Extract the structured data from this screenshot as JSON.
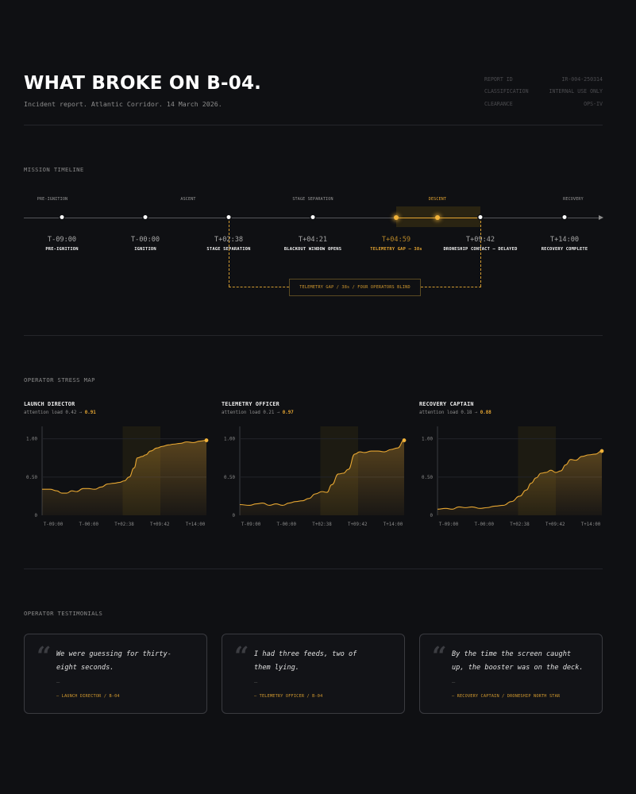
{
  "header": {
    "title": "WHAT BROKE ON B-04.",
    "subtitle": "Incident report. Atlantic Corridor. 14 March 2026.",
    "meta": [
      {
        "key": "REPORT ID",
        "value": "IR-004-250314"
      },
      {
        "key": "CLASSIFICATION",
        "value": "INTERNAL USE ONLY"
      },
      {
        "key": "CLEARANCE",
        "value": "OPS-IV"
      }
    ]
  },
  "timeline": {
    "heading": "MISSION TIMELINE",
    "phases": [
      {
        "label": "PRE-IGNITION",
        "highlight": false
      },
      {
        "label": "ASCENT",
        "highlight": false
      },
      {
        "label": "STAGE SEPARATION",
        "highlight": false
      },
      {
        "label": "DESCENT",
        "highlight": true
      },
      {
        "label": "RECOVERY",
        "highlight": false
      }
    ],
    "events": [
      {
        "time": "T-09:00",
        "label": "PRE-IGNITION",
        "highlight": false
      },
      {
        "time": "T-00:00",
        "label": "IGNITION",
        "highlight": false
      },
      {
        "time": "T+02:38",
        "label": "STAGE SEPARATION",
        "highlight": false
      },
      {
        "time": "T+04:21",
        "label": "BLACKOUT WINDOW OPENS",
        "highlight": false
      },
      {
        "time": "T+04:59",
        "label": "TELEMETRY GAP — 38s",
        "highlight": true
      },
      {
        "time": "T+09:42",
        "label": "DRONESHIP CONTACT — DELAYED",
        "highlight": false
      },
      {
        "time": "T+14:00",
        "label": "RECOVERY COMPLETE",
        "highlight": false
      }
    ],
    "gap_note": "TELEMETRY GAP / 38s / FOUR OPERATORS BLIND",
    "accent": "#e6a632"
  },
  "stress": {
    "heading": "OPERATOR STRESS MAP",
    "charts": [
      {
        "name": "LAUNCH DIRECTOR",
        "load_prefix": "attention load 0.42 →",
        "load_value": "0.91"
      },
      {
        "name": "TELEMETRY OFFICER",
        "load_prefix": "attention load 0.21 →",
        "load_value": "0.97"
      },
      {
        "name": "RECOVERY CAPTAIN",
        "load_prefix": "attention load 0.18 →",
        "load_value": "0.88"
      }
    ]
  },
  "chart_data": [
    {
      "type": "area",
      "title": "LAUNCH DIRECTOR",
      "x_ticks": [
        "T-09:00",
        "T-00:00",
        "T+02:38",
        "T+09:42",
        "T+14:00"
      ],
      "y_ticks": [
        "1.00",
        "0.50",
        "0"
      ],
      "ylim": [
        0,
        1.1
      ],
      "xlim": [
        0,
        1
      ],
      "gap_window": [
        0.49,
        0.72
      ],
      "x": [
        0,
        0.05,
        0.09,
        0.12,
        0.15,
        0.18,
        0.21,
        0.25,
        0.28,
        0.32,
        0.36,
        0.4,
        0.44,
        0.47,
        0.5,
        0.53,
        0.56,
        0.58,
        0.61,
        0.63,
        0.66,
        0.7,
        0.73,
        0.77,
        0.8,
        0.84,
        0.88,
        0.92,
        0.96,
        1
      ],
      "values": [
        0.34,
        0.34,
        0.32,
        0.29,
        0.29,
        0.32,
        0.31,
        0.35,
        0.35,
        0.34,
        0.37,
        0.41,
        0.42,
        0.43,
        0.45,
        0.5,
        0.62,
        0.75,
        0.77,
        0.79,
        0.84,
        0.88,
        0.9,
        0.92,
        0.93,
        0.94,
        0.96,
        0.95,
        0.97,
        0.98
      ],
      "grid": true
    },
    {
      "type": "area",
      "title": "TELEMETRY OFFICER",
      "x_ticks": [
        "T-09:00",
        "T-00:00",
        "T+02:38",
        "T+09:42",
        "T+14:00"
      ],
      "y_ticks": [
        "1.00",
        "0.50",
        "0"
      ],
      "ylim": [
        0,
        1.1
      ],
      "xlim": [
        0,
        1
      ],
      "gap_window": [
        0.49,
        0.72
      ],
      "x": [
        0,
        0.06,
        0.1,
        0.14,
        0.18,
        0.22,
        0.26,
        0.3,
        0.34,
        0.38,
        0.42,
        0.46,
        0.5,
        0.53,
        0.56,
        0.6,
        0.63,
        0.66,
        0.7,
        0.73,
        0.76,
        0.8,
        0.84,
        0.88,
        0.92,
        0.96,
        1
      ],
      "values": [
        0.14,
        0.13,
        0.15,
        0.16,
        0.13,
        0.15,
        0.13,
        0.16,
        0.18,
        0.19,
        0.22,
        0.28,
        0.31,
        0.3,
        0.4,
        0.54,
        0.55,
        0.6,
        0.8,
        0.83,
        0.82,
        0.84,
        0.84,
        0.83,
        0.86,
        0.88,
        0.98
      ],
      "grid": true
    },
    {
      "type": "area",
      "title": "RECOVERY CAPTAIN",
      "x_ticks": [
        "T-09:00",
        "T-00:00",
        "T+02:38",
        "T+09:42",
        "T+14:00"
      ],
      "y_ticks": [
        "1.00",
        "0.50",
        "0"
      ],
      "ylim": [
        0,
        1.1
      ],
      "xlim": [
        0,
        1
      ],
      "gap_window": [
        0.49,
        0.72
      ],
      "x": [
        0,
        0.05,
        0.09,
        0.13,
        0.17,
        0.21,
        0.26,
        0.3,
        0.35,
        0.4,
        0.45,
        0.5,
        0.54,
        0.57,
        0.6,
        0.63,
        0.66,
        0.69,
        0.72,
        0.75,
        0.78,
        0.81,
        0.84,
        0.88,
        0.92,
        0.96,
        1
      ],
      "values": [
        0.08,
        0.09,
        0.08,
        0.11,
        0.1,
        0.11,
        0.09,
        0.1,
        0.12,
        0.13,
        0.18,
        0.25,
        0.33,
        0.42,
        0.49,
        0.55,
        0.56,
        0.59,
        0.56,
        0.58,
        0.66,
        0.73,
        0.72,
        0.77,
        0.79,
        0.8,
        0.84
      ],
      "grid": true
    }
  ],
  "testimonials": {
    "heading": "OPERATOR TESTIMONIALS",
    "mark": "“",
    "dash": "—",
    "cards": [
      {
        "lines": [
          "We were guessing for thirty-",
          "eight seconds."
        ],
        "attribution": "— LAUNCH DIRECTOR / B-04"
      },
      {
        "lines": [
          "I had three feeds, two of",
          "them lying."
        ],
        "attribution": "— TELEMETRY OFFICER / B-04"
      },
      {
        "lines": [
          "By the time the screen caught",
          "up, the booster was on the deck."
        ],
        "attribution": "— RECOVERY CAPTAIN / DRONESHIP NORTH STAR"
      }
    ]
  }
}
